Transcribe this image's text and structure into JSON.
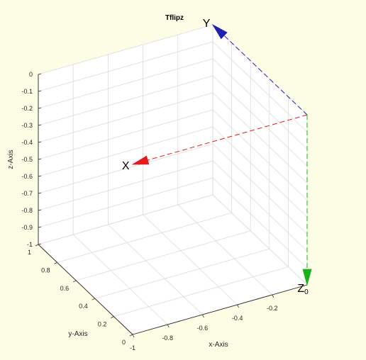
{
  "chart_data": {
    "type": "3d-frame-plot",
    "title": "Tflipz",
    "xlabel": "x-Axis",
    "ylabel": "y-Axis",
    "zlabel": "z-Axis",
    "xlim": [
      -1,
      0
    ],
    "ylim": [
      0,
      1
    ],
    "zlim": [
      -1,
      0
    ],
    "x_ticks": [
      "-1",
      "-0.8",
      "-0.6",
      "-0.4",
      "-0.2"
    ],
    "y_ticks": [
      "0",
      "0.2",
      "0.4",
      "0.6",
      "0.8",
      "1"
    ],
    "z_ticks": [
      "0",
      "-0.1",
      "-0.2",
      "-0.3",
      "-0.4",
      "-0.5",
      "-0.6",
      "-0.7",
      "-0.8",
      "-0.9",
      "-1"
    ],
    "grid": true,
    "frame": {
      "origin": [
        0,
        0,
        0
      ],
      "axes": [
        {
          "name": "X",
          "subscript": "",
          "direction": [
            -1,
            0,
            0
          ],
          "color": "#e41a1c"
        },
        {
          "name": "Y",
          "subscript": "",
          "direction": [
            0,
            1,
            0
          ],
          "color": "#1f1fb4"
        },
        {
          "name": "Z",
          "subscript": "0",
          "direction": [
            0,
            0,
            -1
          ],
          "color": "#19b219"
        }
      ]
    }
  }
}
